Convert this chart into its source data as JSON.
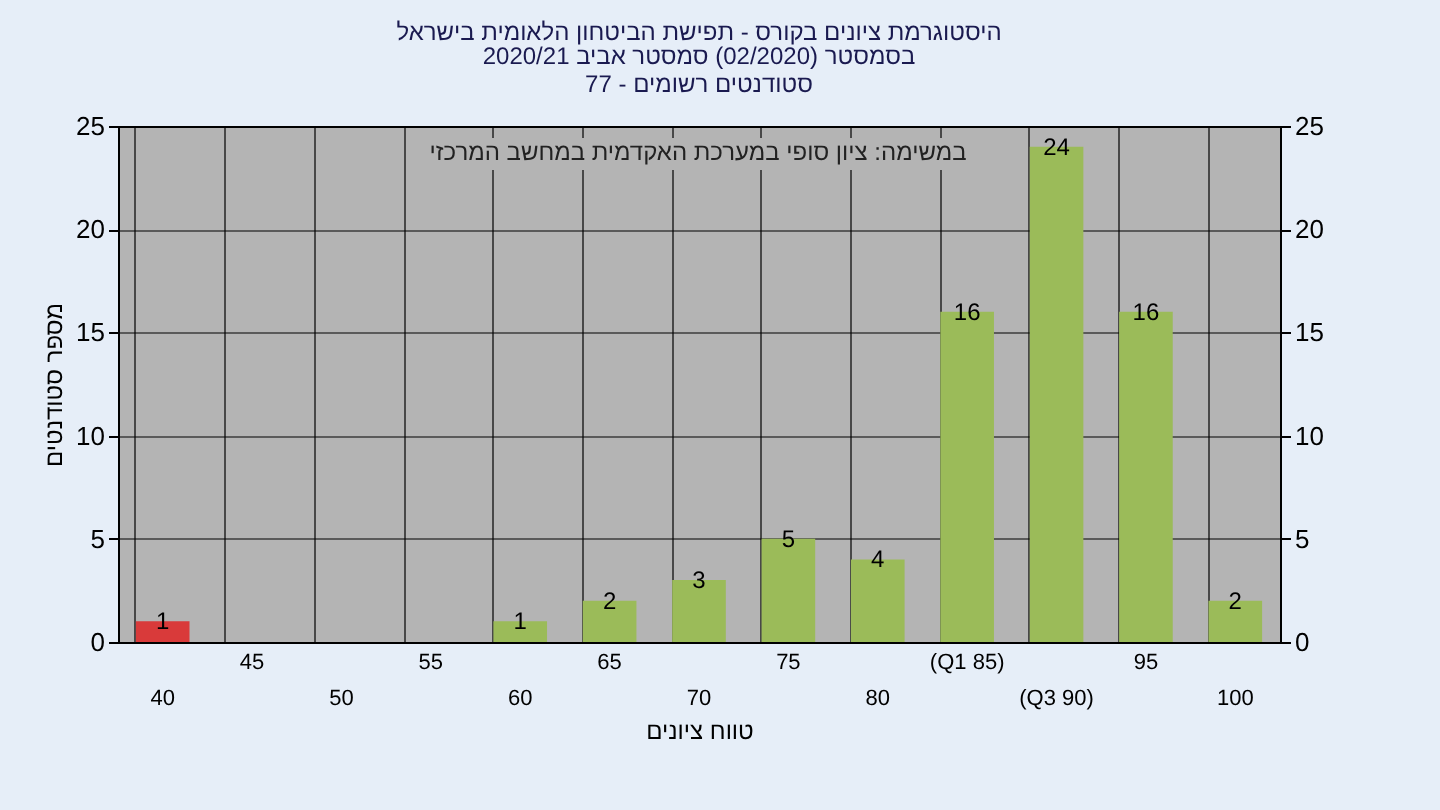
{
  "chart_data": {
    "type": "bar",
    "title": "היסטוגרמת ציונים בקורס - תפישת הביטחון הלאומית בישראל",
    "subtitle": "בסמסטר (02/2020) סמסטר אביב 2020/21\nסטודנטים רשומים - 77",
    "xlabel": "טווח ציונים",
    "ylabel": "מספר סטודנטים",
    "annotations": [
      "במשימה: ציון סופי במערכת האקדמית במחשב המרכזי"
    ],
    "categories": [
      "40",
      "45",
      "50",
      "55",
      "60",
      "65",
      "70",
      "75",
      "80",
      "(Q1 85)",
      "(Q3 90)",
      "95",
      "100"
    ],
    "values": [
      1,
      0,
      0,
      0,
      1,
      2,
      3,
      5,
      4,
      16,
      24,
      16,
      2
    ],
    "colors": [
      "#d93a3a",
      "#9bbb59",
      "#9bbb59",
      "#9bbb59",
      "#9bbb59",
      "#9bbb59",
      "#9bbb59",
      "#9bbb59",
      "#9bbb59",
      "#9bbb59",
      "#9bbb59",
      "#9bbb59",
      "#9bbb59"
    ],
    "ylim": [
      0,
      25
    ],
    "yticks": [
      0,
      5,
      10,
      15,
      20,
      25
    ],
    "y2lim": [
      0,
      25
    ],
    "y2ticks": [
      0,
      5,
      10,
      15,
      20,
      25
    ],
    "value_labels": [
      "1",
      null,
      null,
      null,
      "1",
      "2",
      "3",
      "5",
      "4",
      "16",
      "24",
      "16",
      "2"
    ],
    "grid": true
  }
}
